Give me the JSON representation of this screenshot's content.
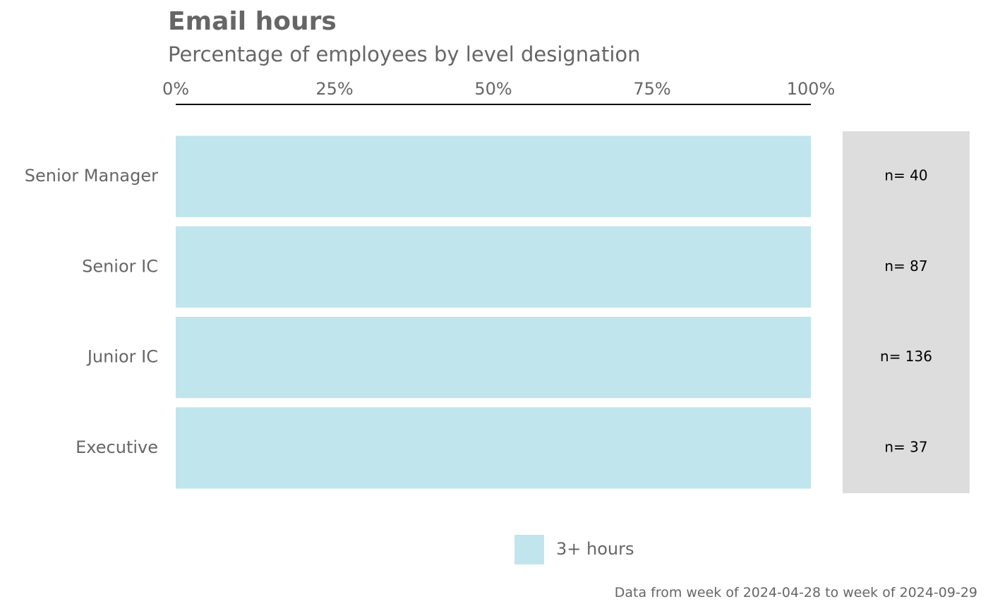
{
  "chart_data": {
    "type": "bar",
    "orientation": "horizontal",
    "stacked": true,
    "title": "Email hours",
    "subtitle": "Percentage of employees by level designation",
    "categories": [
      "Senior Manager",
      "Senior IC",
      "Junior IC",
      "Executive"
    ],
    "series": [
      {
        "name": "3+ hours",
        "color": "#c0e5ec",
        "values": [
          1.0,
          1.0,
          1.0,
          1.0
        ]
      }
    ],
    "counts": [
      "n= 40",
      "n= 87",
      "n= 136",
      "n= 37"
    ],
    "xlim": [
      0,
      1
    ],
    "x_ticks": [
      0,
      0.25,
      0.5,
      0.75,
      1.0
    ],
    "x_tick_labels": [
      "0%",
      "25%",
      "50%",
      "75%",
      "100%"
    ],
    "x_axis_position": "top",
    "legend": {
      "position": "bottom",
      "entries": [
        "3+ hours"
      ]
    },
    "caption": "Data from week of 2024-04-28 to week of 2024-09-29",
    "count_panel_color": "#dddddd",
    "grid": false
  }
}
